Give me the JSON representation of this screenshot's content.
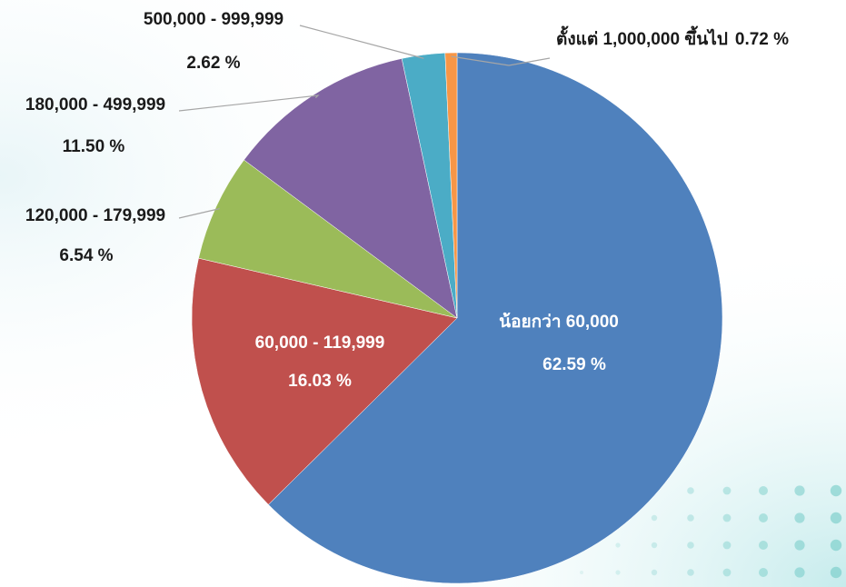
{
  "chart_data": {
    "type": "pie",
    "categories": [
      "น้อยกว่า 60,000",
      "60,000 - 119,999",
      "120,000 - 179,999",
      "180,000 - 499,999",
      "500,000 - 999,999",
      "ตั้งแต่ 1,000,000 ขึ้นไป"
    ],
    "values": [
      62.59,
      16.03,
      6.54,
      11.5,
      2.62,
      0.72
    ],
    "value_labels": [
      "62.59  %",
      "16.03 %",
      "6.54 %",
      "11.50 %",
      "2.62 %",
      "0.72  %"
    ],
    "colors": [
      "#4f81bd",
      "#c0504d",
      "#9bbb59",
      "#8064a2",
      "#4bacc6",
      "#f79646"
    ]
  }
}
